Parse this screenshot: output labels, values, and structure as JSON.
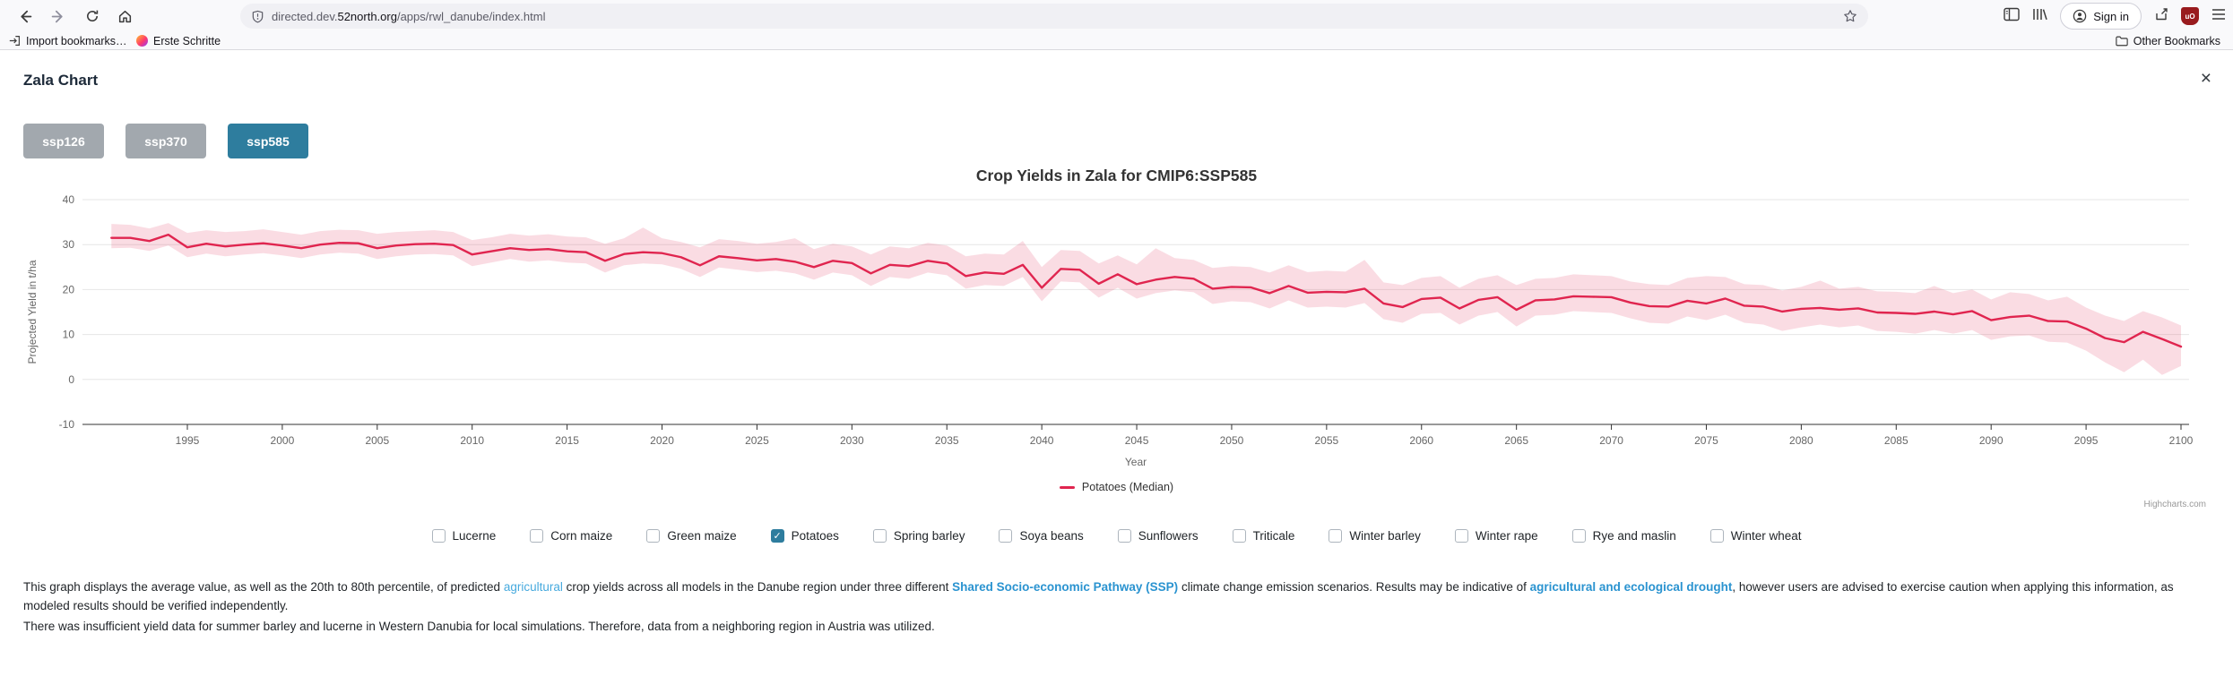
{
  "browser": {
    "toolbar": {
      "url_subdomain": "directed.dev.",
      "url_domain": "52north.org",
      "url_path": "/apps/rwl_danube/index.html",
      "sign_in_label": "Sign in"
    },
    "bookmarks_bar": {
      "items": [
        {
          "label": "Import bookmarks…"
        },
        {
          "label": "Erste Schritte"
        }
      ],
      "other_label": "Other Bookmarks"
    }
  },
  "page": {
    "title": "Zala Chart",
    "close_label": "×",
    "accent_color": "#2e7d9e",
    "inactive_button_color": "#a2a8ae",
    "scenario_buttons": [
      {
        "label": "ssp126",
        "active": false
      },
      {
        "label": "ssp370",
        "active": false
      },
      {
        "label": "ssp585",
        "active": true
      }
    ],
    "crops": [
      {
        "label": "Lucerne",
        "checked": false
      },
      {
        "label": "Corn maize",
        "checked": false
      },
      {
        "label": "Green maize",
        "checked": false
      },
      {
        "label": "Potatoes",
        "checked": true
      },
      {
        "label": "Spring barley",
        "checked": false
      },
      {
        "label": "Soya beans",
        "checked": false
      },
      {
        "label": "Sunflowers",
        "checked": false
      },
      {
        "label": "Triticale",
        "checked": false
      },
      {
        "label": "Winter barley",
        "checked": false
      },
      {
        "label": "Winter rape",
        "checked": false
      },
      {
        "label": "Rye and maslin",
        "checked": false
      },
      {
        "label": "Winter wheat",
        "checked": false
      }
    ],
    "description": {
      "para1_segments": [
        {
          "text": "This graph displays the average value, as well as the 20th to 80th percentile, of predicted "
        },
        {
          "text": "agricultural",
          "style": "link-light"
        },
        {
          "text": " crop yields across all models in the Danube region under three different "
        },
        {
          "text": "Shared Socio-economic Pathway (SSP)",
          "style": "link-bold"
        },
        {
          "text": " climate change emission scenarios. Results may be indicative of "
        },
        {
          "text": "agricultural and ecological drought",
          "style": "link-bold"
        },
        {
          "text": ", however users are advised to exercise caution when applying this information, as modeled results should be verified independently."
        }
      ],
      "para2": "There was insufficient yield data for summer barley and lucerne in Western Danubia for local simulations. Therefore, data from a neighboring region in Austria was utilized."
    }
  },
  "chart_data": {
    "type": "line",
    "title": "Crop Yields in Zala for CMIP6:SSP585",
    "xlabel": "Year",
    "ylabel": "Projected Yield in t/ha",
    "legend": "Potatoes (Median)",
    "credit": "Highcharts.com",
    "ylim": [
      -10,
      40
    ],
    "yticks": [
      40,
      30,
      20,
      10,
      0,
      -10
    ],
    "xticks": [
      1995,
      2000,
      2005,
      2010,
      2015,
      2020,
      2025,
      2030,
      2035,
      2040,
      2045,
      2050,
      2055,
      2060,
      2065,
      2070,
      2075,
      2080,
      2085,
      2090,
      2095,
      2100
    ],
    "grid": true,
    "legend_position": "bottom-center",
    "x_start": 1991,
    "x_step": 1,
    "line_color": "#e0254f",
    "band_fill": "rgba(224,37,79,0.16)",
    "series": [
      {
        "name": "Potatoes (Median)",
        "type": "line",
        "values": [
          31.5,
          31.5,
          30.8,
          32.2,
          29.4,
          30.2,
          29.6,
          30.0,
          30.3,
          29.8,
          29.2,
          30.0,
          30.4,
          30.3,
          29.2,
          29.8,
          30.1,
          30.2,
          29.9,
          27.8,
          28.5,
          29.2,
          28.8,
          29.0,
          28.5,
          28.3,
          26.4,
          27.9,
          28.3,
          28.1,
          27.2,
          25.4,
          27.4,
          27.0,
          26.5,
          26.8,
          26.2,
          25.0,
          26.4,
          25.9,
          23.6,
          25.5,
          25.2,
          26.4,
          25.8,
          23.0,
          23.8,
          23.5,
          25.5,
          20.4,
          24.6,
          24.4,
          21.3,
          23.4,
          21.2,
          22.2,
          22.8,
          22.4,
          20.2,
          20.6,
          20.5,
          19.2,
          20.8,
          19.3,
          19.5,
          19.4,
          20.2,
          16.9,
          16.1,
          17.9,
          18.2,
          15.8,
          17.7,
          18.3,
          15.5,
          17.6,
          17.8,
          18.5,
          18.4,
          18.3,
          17.1,
          16.3,
          16.2,
          17.5,
          16.9,
          18.0,
          16.4,
          16.2,
          15.1,
          15.7,
          15.9,
          15.5,
          15.8,
          14.9,
          14.8,
          14.6,
          15.1,
          14.5,
          15.2,
          13.2,
          13.9,
          14.2,
          13.0,
          12.9,
          11.3,
          9.2,
          8.3,
          10.6,
          9.0,
          7.3
        ]
      },
      {
        "name": "Potatoes (20th to 80th percentile)",
        "type": "arearange",
        "upper": [
          34.6,
          34.4,
          33.6,
          34.8,
          32.6,
          33.2,
          32.8,
          33.0,
          33.4,
          32.8,
          32.2,
          33.0,
          33.3,
          33.2,
          32.4,
          32.8,
          33.0,
          33.2,
          32.8,
          31.0,
          31.6,
          32.4,
          32.0,
          32.3,
          31.8,
          31.6,
          30.2,
          31.4,
          33.8,
          31.4,
          30.6,
          29.4,
          31.2,
          30.8,
          30.2,
          30.6,
          31.4,
          29.0,
          30.2,
          29.6,
          27.8,
          29.6,
          29.2,
          30.4,
          29.8,
          27.4,
          28.0,
          27.8,
          30.8,
          25.0,
          28.8,
          28.6,
          25.8,
          27.6,
          25.6,
          29.2,
          27.0,
          26.6,
          24.8,
          25.2,
          25.0,
          23.8,
          25.4,
          23.9,
          24.2,
          24.0,
          26.6,
          21.6,
          21.0,
          22.6,
          23.0,
          20.4,
          22.4,
          23.2,
          21.0,
          22.4,
          22.6,
          23.4,
          23.2,
          23.0,
          21.8,
          21.2,
          21.0,
          22.6,
          23.0,
          22.8,
          21.2,
          21.0,
          19.8,
          20.6,
          22.0,
          20.2,
          20.6,
          19.6,
          19.5,
          19.2,
          20.8,
          19.2,
          20.0,
          17.8,
          19.4,
          19.0,
          17.6,
          18.4,
          16.0,
          14.2,
          13.0,
          15.2,
          13.8,
          12.0
        ],
        "lower": [
          29.2,
          29.3,
          28.6,
          29.8,
          27.2,
          28.0,
          27.4,
          27.8,
          28.1,
          27.6,
          27.0,
          27.8,
          28.2,
          28.0,
          26.8,
          27.4,
          27.8,
          27.9,
          27.6,
          25.2,
          26.0,
          26.8,
          26.2,
          26.5,
          26.0,
          25.8,
          23.8,
          25.4,
          25.8,
          25.6,
          24.6,
          22.8,
          24.9,
          24.4,
          23.9,
          24.2,
          23.6,
          22.2,
          23.8,
          23.2,
          20.8,
          22.8,
          22.4,
          23.8,
          23.2,
          20.2,
          21.0,
          20.8,
          22.8,
          17.4,
          21.8,
          21.6,
          18.2,
          20.4,
          18.0,
          19.2,
          19.8,
          19.4,
          16.8,
          17.4,
          17.2,
          15.8,
          17.6,
          16.0,
          16.2,
          16.0,
          17.0,
          13.4,
          12.6,
          14.6,
          14.8,
          12.2,
          14.2,
          15.0,
          11.8,
          14.2,
          14.4,
          15.2,
          15.0,
          14.8,
          13.6,
          12.6,
          12.4,
          14.0,
          13.2,
          14.4,
          12.6,
          12.2,
          10.8,
          11.6,
          12.2,
          11.6,
          12.0,
          10.8,
          10.6,
          10.2,
          11.0,
          10.2,
          11.0,
          8.8,
          9.6,
          9.8,
          8.4,
          8.2,
          6.4,
          3.8,
          1.6,
          4.4,
          1.0,
          3.0
        ]
      }
    ]
  }
}
